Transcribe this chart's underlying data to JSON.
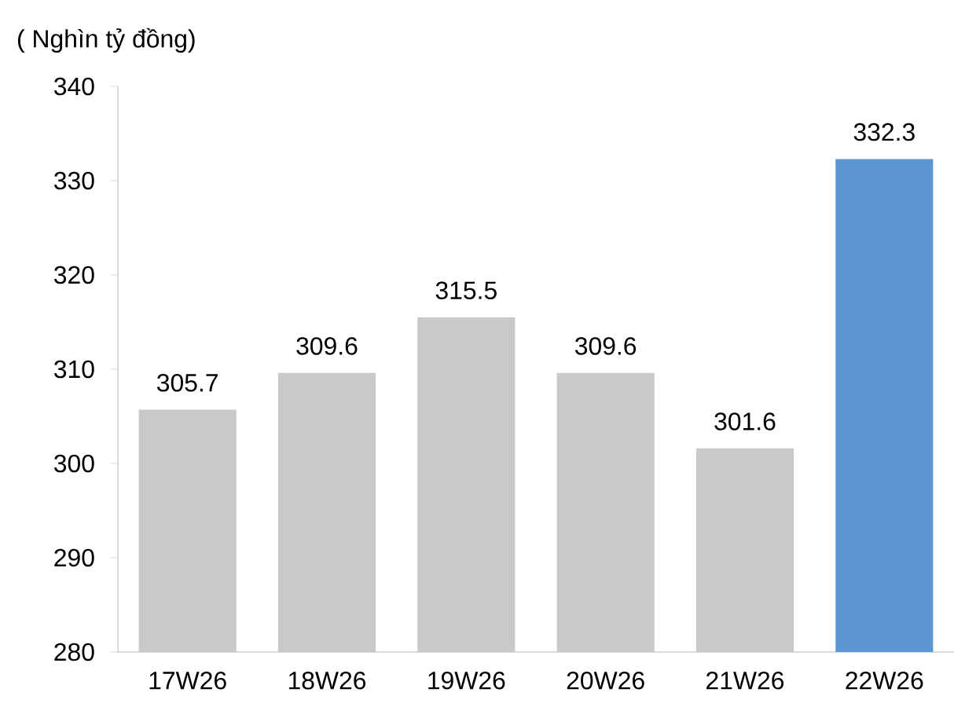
{
  "chart_data": {
    "type": "bar",
    "ylabel": "( Nghìn tỷ đồng)",
    "categories": [
      "17W26",
      "18W26",
      "19W26",
      "20W26",
      "21W26",
      "22W26"
    ],
    "values": [
      305.7,
      309.6,
      315.5,
      309.6,
      301.6,
      332.3
    ],
    "colors": [
      "#c9c9c9",
      "#c9c9c9",
      "#c9c9c9",
      "#c9c9c9",
      "#c9c9c9",
      "#5b96d3"
    ],
    "ylim": [
      280,
      340
    ],
    "yticks": [
      280,
      290,
      300,
      310,
      320,
      330,
      340
    ],
    "data_labels": true
  }
}
